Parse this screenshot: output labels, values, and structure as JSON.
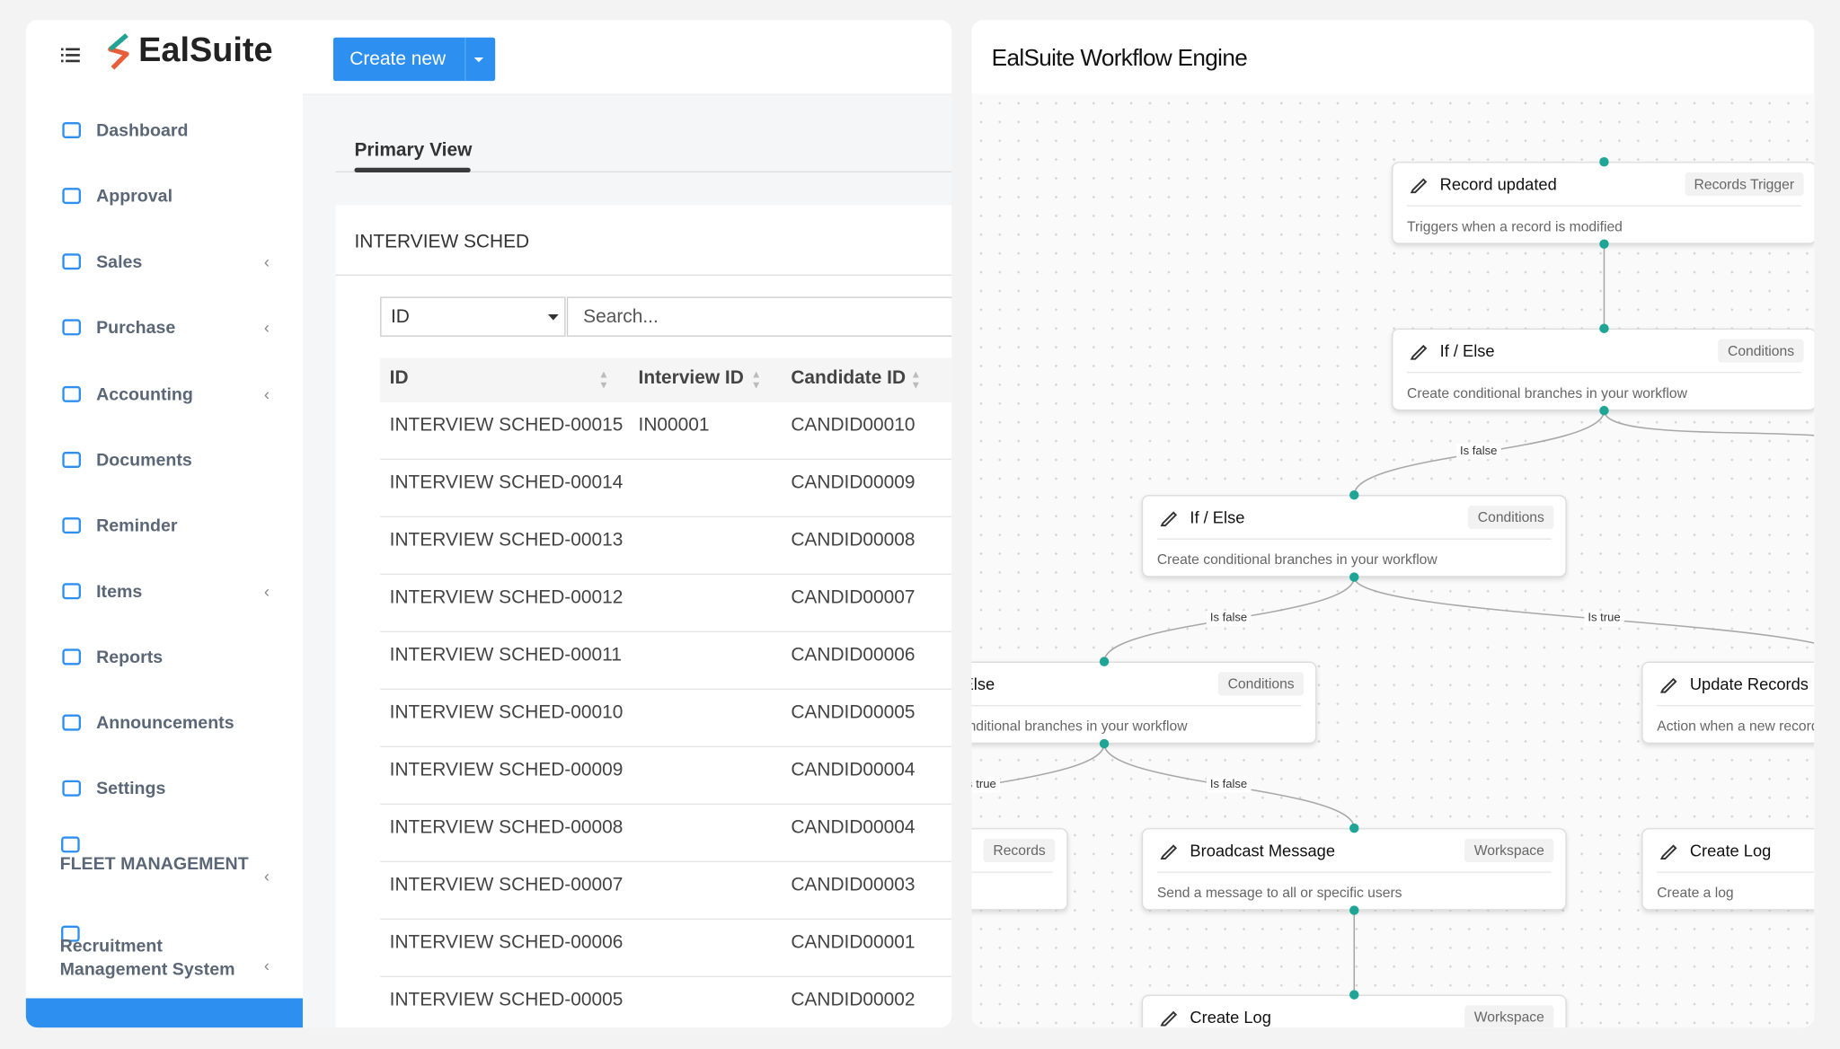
{
  "app": {
    "brand": "EalSuite",
    "create_button": "Create new"
  },
  "sidebar": {
    "items": [
      {
        "label": "Dashboard",
        "has_submenu": false
      },
      {
        "label": "Approval",
        "has_submenu": false
      },
      {
        "label": "Sales",
        "has_submenu": true
      },
      {
        "label": "Purchase",
        "has_submenu": true
      },
      {
        "label": "Accounting",
        "has_submenu": true
      },
      {
        "label": "Documents",
        "has_submenu": false
      },
      {
        "label": "Reminder",
        "has_submenu": false
      },
      {
        "label": "Items",
        "has_submenu": true
      },
      {
        "label": "Reports",
        "has_submenu": false
      },
      {
        "label": "Announcements",
        "has_submenu": false
      },
      {
        "label": "Settings",
        "has_submenu": false
      },
      {
        "label": "FLEET MANAGEMENT",
        "has_submenu": true
      },
      {
        "label": "Recruitment Management System",
        "has_submenu": true
      }
    ]
  },
  "tabs": [
    "Primary View"
  ],
  "table": {
    "title": "INTERVIEW SCHED",
    "filter_field": "ID",
    "search_placeholder": "Search...",
    "columns": [
      "ID",
      "Interview ID",
      "Candidate ID"
    ],
    "rows": [
      [
        "INTERVIEW SCHED-00015",
        "IN00001",
        "CANDID00010"
      ],
      [
        "INTERVIEW SCHED-00014",
        null,
        "CANDID00009"
      ],
      [
        "INTERVIEW SCHED-00013",
        null,
        "CANDID00008"
      ],
      [
        "INTERVIEW SCHED-00012",
        null,
        "CANDID00007"
      ],
      [
        "INTERVIEW SCHED-00011",
        null,
        "CANDID00006"
      ],
      [
        "INTERVIEW SCHED-00010",
        null,
        "CANDID00005"
      ],
      [
        "INTERVIEW SCHED-00009",
        null,
        "CANDID00004"
      ],
      [
        "INTERVIEW SCHED-00008",
        null,
        "CANDID00004"
      ],
      [
        "INTERVIEW SCHED-00007",
        null,
        "CANDID00003"
      ],
      [
        "INTERVIEW SCHED-00006",
        null,
        "CANDID00001"
      ],
      [
        "INTERVIEW SCHED-00005",
        null,
        "CANDID00002"
      ]
    ]
  },
  "workflow": {
    "title": "EalSuite Workflow Engine",
    "nodes": [
      {
        "title": "Record updated",
        "tag": "Records Trigger",
        "description": "Triggers when a record is modified"
      },
      {
        "title": "If / Else",
        "tag": "Conditions",
        "description": "Create conditional branches in your workflow"
      },
      {
        "title": "If / Else",
        "tag": "Conditions",
        "description": "Create conditional branches in your workflow"
      },
      {
        "title": "If / Else",
        "tag": "Conditions",
        "description": "Create conditional branches in your workflow"
      },
      {
        "title": "Update Records",
        "description": "Action when a new record i"
      },
      {
        "tag": "Records"
      },
      {
        "title": "Broadcast Message",
        "tag": "Workspace",
        "description": "Send a message to all or specific users"
      },
      {
        "title": "Create Log",
        "description": "Create a log"
      },
      {
        "title": "Create Log",
        "tag": "Workspace"
      }
    ],
    "edge_labels": [
      "Is false",
      "Is false",
      "Is true",
      "Is true",
      "Is false"
    ]
  }
}
